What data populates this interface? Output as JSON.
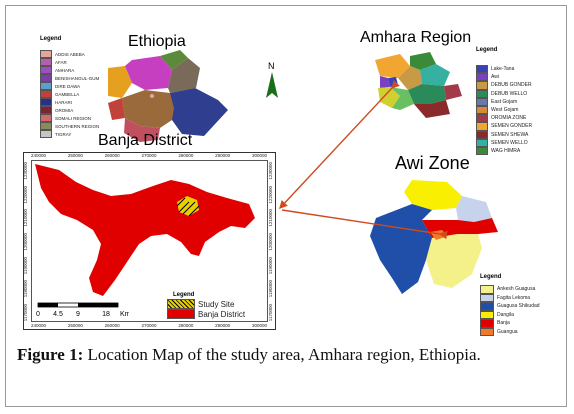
{
  "ethiopia": {
    "title": "Ethiopia",
    "legend_title": "Legend",
    "legend": [
      {
        "label": "ADDIS ABEBA",
        "color": "#e8a39b"
      },
      {
        "label": "AFAR",
        "color": "#b45fb0"
      },
      {
        "label": "AMHARA",
        "color": "#9d4fbf"
      },
      {
        "label": "BENISHANGUL-GUM",
        "color": "#7b3fa8"
      },
      {
        "label": "DIRE DAWA",
        "color": "#5aa0c8"
      },
      {
        "label": "GAMBELLA",
        "color": "#c0423a"
      },
      {
        "label": "HARARI",
        "color": "#2a2f8a"
      },
      {
        "label": "OROMIA",
        "color": "#7a2531"
      },
      {
        "label": "SOMALI REGION",
        "color": "#d36a6a"
      },
      {
        "label": "SOUTHERN REGION",
        "color": "#8a8a5a"
      },
      {
        "label": "TIGRAY",
        "color": "#c6c6c6"
      }
    ]
  },
  "amhara": {
    "title": "Amhara Region",
    "legend_title": "Legend",
    "legend": [
      {
        "label": "Lake-Tana",
        "color": "#3b3fb8"
      },
      {
        "label": "Awi",
        "color": "#7a40c0"
      },
      {
        "label": "DEBUB GONDER",
        "color": "#c89a45"
      },
      {
        "label": "DEBUB WELLO",
        "color": "#2a8a5a"
      },
      {
        "label": "East Gojam",
        "color": "#6a7aa8"
      },
      {
        "label": "West Gojam",
        "color": "#d68a3a"
      },
      {
        "label": "OROMIA ZONE",
        "color": "#a33a4a"
      },
      {
        "label": "SEMEN GONDER",
        "color": "#f2a632"
      },
      {
        "label": "SEMEN SHEWA",
        "color": "#8a2a2a"
      },
      {
        "label": "SEMEN WELLO",
        "color": "#36b0a0"
      },
      {
        "label": "WAG HIMRA",
        "color": "#3a8a3a"
      }
    ]
  },
  "banja": {
    "title": "Banja District",
    "x_ticks": [
      "240000",
      "250000",
      "260000",
      "270000",
      "280000",
      "290000",
      "300000"
    ],
    "y_ticks": [
      "1230000",
      "1220000",
      "1210000",
      "1200000",
      "1190000",
      "1180000",
      "1170000"
    ],
    "legend_title": "Legend",
    "legend": [
      {
        "label": "Study Site",
        "color": "#e8d000"
      },
      {
        "label": "Banja District",
        "color": "#e00000"
      }
    ],
    "scale_labels": [
      "0",
      "4.5",
      "9",
      "18",
      "Km"
    ]
  },
  "awi": {
    "title": "Awi Zone",
    "legend_title": "Legend",
    "legend": [
      {
        "label": "Ankesh Guagusa",
        "color": "#f4f08a"
      },
      {
        "label": "Fagita Lekoma",
        "color": "#c7d3ec"
      },
      {
        "label": "Guagusa Shikudad",
        "color": "#1f4fa8"
      },
      {
        "label": "Dangila",
        "color": "#f8f000"
      },
      {
        "label": "Banja",
        "color": "#e00000"
      },
      {
        "label": "Guangua",
        "color": "#f07a2a"
      }
    ]
  },
  "caption": {
    "label": "Figure 1:",
    "text": "Location Map of the study area, Amhara region, Ethiopia."
  }
}
